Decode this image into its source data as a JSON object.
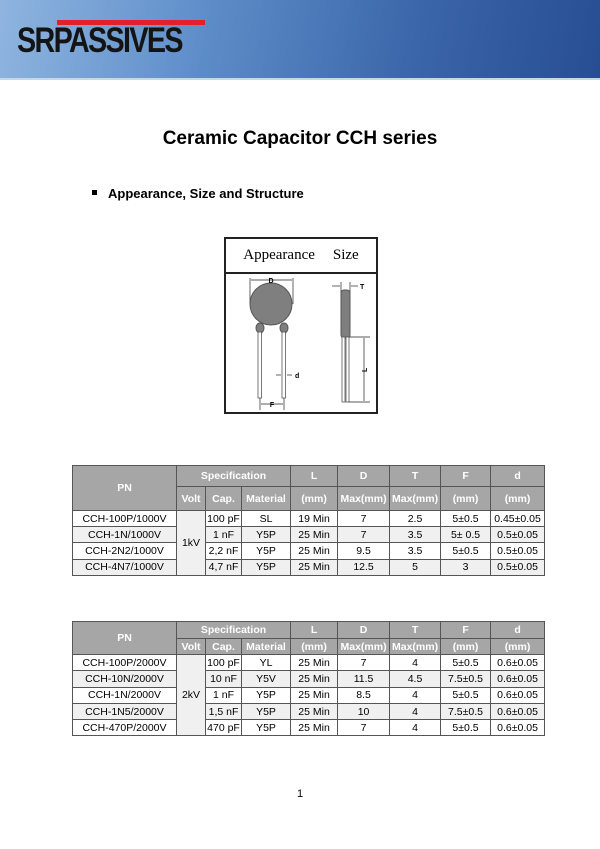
{
  "header": {
    "logo_text": "SRPASSIVES",
    "brand_red": "#e0202a",
    "banner_blue": "#3a65a8"
  },
  "title": "Ceramic Capacitor CCH series",
  "section_heading": "Appearance, Size and Structure",
  "diagram": {
    "appearance_label": "Appearance",
    "size_label": "Size",
    "dim_D": "D",
    "dim_T": "T",
    "dim_L": "L",
    "dim_d": "d",
    "dim_F": "F"
  },
  "table_headers": {
    "pn": "PN",
    "specification": "Specification",
    "L": "L",
    "D": "D",
    "T": "T",
    "F": "F",
    "d": "d",
    "volt": "Volt",
    "cap": "Cap.",
    "material": "Material",
    "L_unit": "(mm)",
    "D_unit": "Max(mm)",
    "T_unit": "Max(mm)",
    "F_unit": "(mm)",
    "d_unit": "(mm)"
  },
  "tables": [
    {
      "volt": "1kV",
      "rows": [
        [
          "CCH-100P/1000V",
          "100 pF",
          "SL",
          "19 Min",
          "7",
          "2.5",
          "5±0.5",
          "0.45±0.05"
        ],
        [
          "CCH-1N/1000V",
          "1 nF",
          "Y5P",
          "25 Min",
          "7",
          "3.5",
          "5± 0.5",
          "0.5±0.05"
        ],
        [
          "CCH-2N2/1000V",
          "2,2 nF",
          "Y5P",
          "25 Min",
          "9.5",
          "3.5",
          "5±0.5",
          "0.5±0.05"
        ],
        [
          "CCH-4N7/1000V",
          "4,7 nF",
          "Y5P",
          "25 Min",
          "12.5",
          "5",
          "3",
          "0.5±0.05"
        ]
      ]
    },
    {
      "volt": "2kV",
      "rows": [
        [
          "CCH-100P/2000V",
          "100 pF",
          "YL",
          "25 Min",
          "7",
          "4",
          "5±0.5",
          "0.6±0.05"
        ],
        [
          "CCH-10N/2000V",
          "10 nF",
          "Y5V",
          "25 Min",
          "11.5",
          "4.5",
          "7.5±0.5",
          "0.6±0.05"
        ],
        [
          "CCH-1N/2000V",
          "1 nF",
          "Y5P",
          "25 Min",
          "8.5",
          "4",
          "5±0.5",
          "0.6±0.05"
        ],
        [
          "CCH-1N5/2000V",
          "1,5 nF",
          "Y5P",
          "25 Min",
          "10",
          "4",
          "7.5±0.5",
          "0.6±0.05"
        ],
        [
          "CCH-470P/2000V",
          "470 pF",
          "Y5P",
          "25 Min",
          "7",
          "4",
          "5±0.5",
          "0.6±0.05"
        ]
      ]
    }
  ],
  "page_number": "1"
}
